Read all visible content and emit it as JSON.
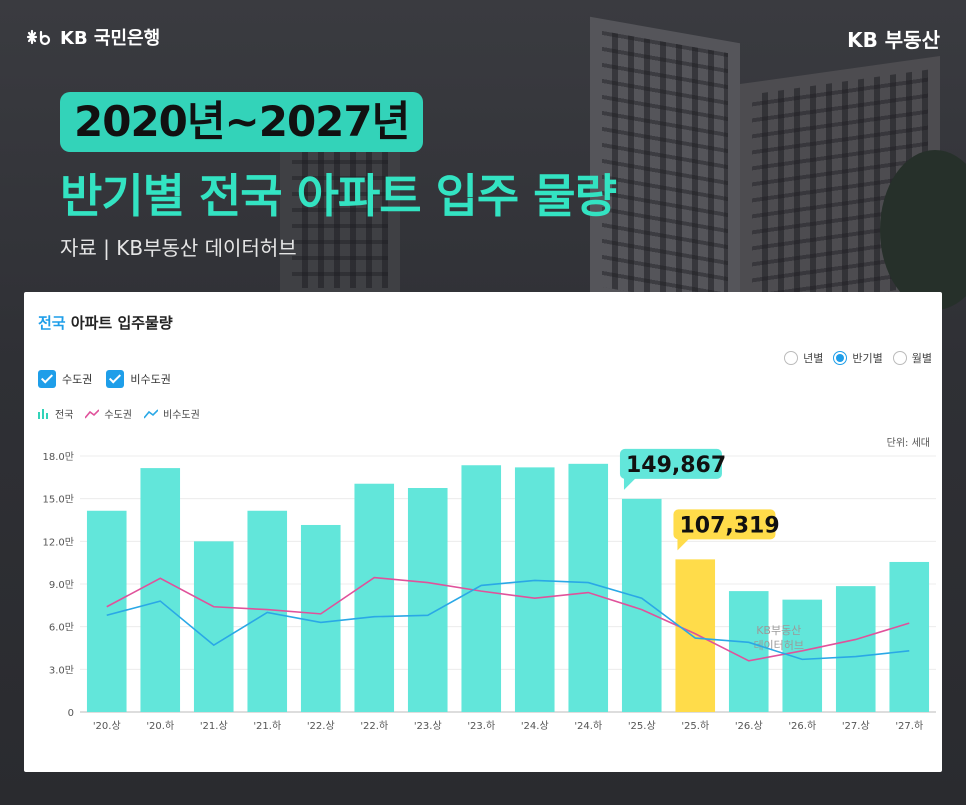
{
  "brand": {
    "left": "KB 국민은행",
    "right": "KB 부동산"
  },
  "header": {
    "title_line1": "2020년~2027년",
    "title_line2": "반기별 전국 아파트 입주 물량",
    "source": "자료 | KB부동산 데이터허브"
  },
  "card": {
    "title_highlight": "전국",
    "title_rest": " 아파트 입주물량",
    "radios": [
      {
        "label": "년별",
        "selected": false
      },
      {
        "label": "반기별",
        "selected": true
      },
      {
        "label": "월별",
        "selected": false
      }
    ],
    "checkboxes": [
      {
        "label": "수도권",
        "checked": true
      },
      {
        "label": "비수도권",
        "checked": true
      }
    ],
    "legend": [
      {
        "label": "전국",
        "color": "#33d3b9",
        "icon": "bar-icon"
      },
      {
        "label": "수도권",
        "color": "#e0529b",
        "icon": "line-icon"
      },
      {
        "label": "비수도권",
        "color": "#2aa8e6",
        "icon": "line-icon"
      }
    ],
    "unit": "단위: 세대",
    "watermark": [
      "KB부동산",
      "데이터허브"
    ]
  },
  "chart_data": {
    "type": "bar",
    "categories": [
      "'20.상",
      "'20.하",
      "'21.상",
      "'21.하",
      "'22.상",
      "'22.하",
      "'23.상",
      "'23.하",
      "'24.상",
      "'24.하",
      "'25.상",
      "'25.하",
      "'26.상",
      "'26.하",
      "'27.상",
      "'27.하"
    ],
    "yticks": [
      "0",
      "3.0만",
      "6.0만",
      "9.0만",
      "12.0만",
      "15.0만",
      "18.0만"
    ],
    "ylim": [
      0,
      180000
    ],
    "colors": {
      "bar": "#62e6da",
      "highlight": "#ffdc4a",
      "metro": "#e0529b",
      "nonmetro": "#2aa8e6"
    },
    "series": [
      {
        "name": "전국",
        "kind": "bar",
        "values": [
          141500,
          171500,
          120000,
          141500,
          131500,
          160500,
          157500,
          173500,
          172000,
          174500,
          149867,
          107319,
          85000,
          79000,
          88500,
          105500
        ]
      },
      {
        "name": "수도권",
        "kind": "line",
        "values": [
          74000,
          94000,
          74000,
          72000,
          69000,
          94500,
          91000,
          85000,
          80000,
          84000,
          72000,
          55000,
          36000,
          43000,
          51000,
          62500
        ]
      },
      {
        "name": "비수도권",
        "kind": "line",
        "values": [
          68000,
          78000,
          47000,
          70000,
          63000,
          67000,
          68000,
          89000,
          92500,
          91000,
          80000,
          52000,
          49000,
          37000,
          39000,
          43000
        ]
      }
    ],
    "highlight_index": 11,
    "callouts": [
      {
        "index": 10,
        "text": "149,867",
        "color": "#62e6da"
      },
      {
        "index": 11,
        "text": "107,319",
        "color": "#ffdc4a"
      }
    ]
  }
}
